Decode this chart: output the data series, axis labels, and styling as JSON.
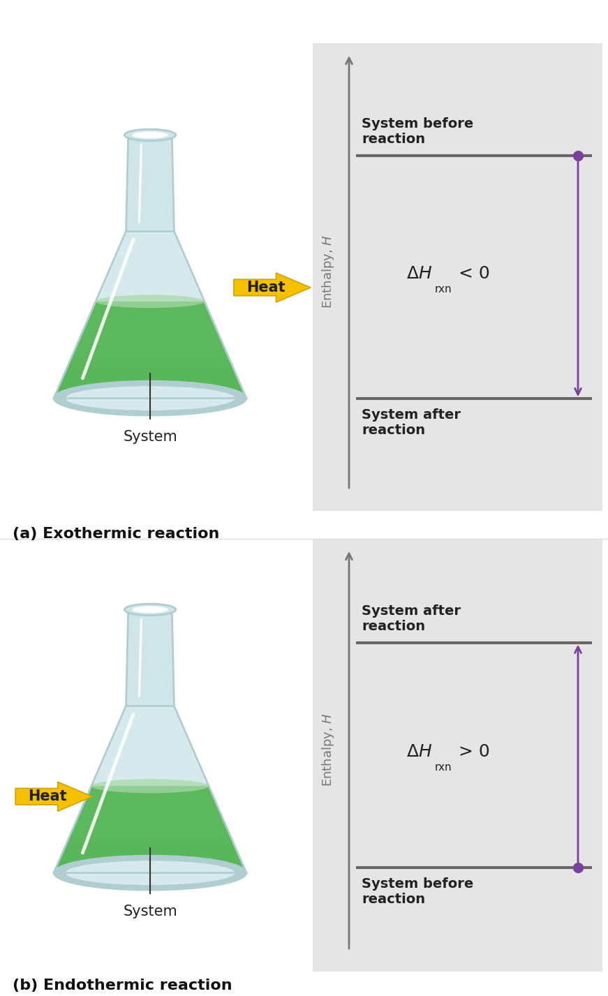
{
  "bg_color": "#ffffff",
  "panel_bg": "#e5e5e5",
  "arrow_color": "#7B3F9E",
  "line_color": "#666666",
  "flask_green_dark": "#3a9e3a",
  "flask_green_mid": "#5cb85c",
  "flask_green_light": "#a8d8a8",
  "flask_glass_color": "#d6eaed",
  "flask_glass_edge": "#b0cdd0",
  "flask_neck_color": "#d0e5e8",
  "flask_neck_edge": "#b0cdd0",
  "heat_fill": "#f5c000",
  "heat_edge": "#d4a200",
  "heat_text": "#222222",
  "axis_color": "#777777",
  "label_color": "#222222",
  "title_color": "#111111",
  "panel_a_title": "(a) Exothermic reaction",
  "panel_b_title": "(b) Endothermic reaction",
  "exo_top_label": "System before\nreaction",
  "exo_bot_label": "System after\nreaction",
  "exo_inequality": "< 0",
  "endo_top_label": "System after\nreaction",
  "endo_bot_label": "System before\nreaction",
  "endo_inequality": "> 0",
  "enthalpy_label": "Enthalpy, $H$",
  "system_label": "System",
  "heat_label": "Heat"
}
